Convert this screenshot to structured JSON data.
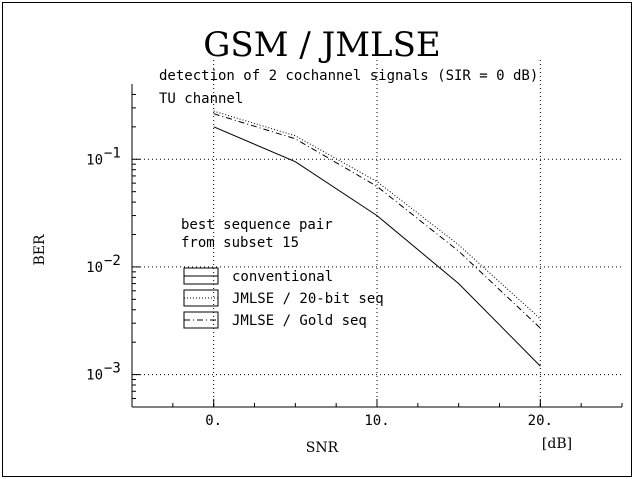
{
  "chart_data": {
    "type": "line",
    "title": "GSM / JMLSE",
    "subtitle_lines": [
      "detection of 2 cochannel signals (SIR = 0 dB)",
      "TU channel"
    ],
    "xlabel": "SNR",
    "xunit": "[dB]",
    "ylabel": "BER",
    "xlim": [
      -5,
      25
    ],
    "ylim": [
      0.0005,
      0.5
    ],
    "yscale": "log",
    "grid": true,
    "x_ticks": [
      0,
      10,
      20
    ],
    "x_tick_labels": [
      "0.",
      "10.",
      "20."
    ],
    "y_ticks": [
      0.1,
      0.01,
      0.001
    ],
    "y_tick_labels": [
      {
        "base": "10",
        "exp": "−1"
      },
      {
        "base": "10",
        "exp": "−2"
      },
      {
        "base": "10",
        "exp": "−3"
      }
    ],
    "annotation": [
      "best sequence pair",
      "from subset 15"
    ],
    "legend_position": "left",
    "series": [
      {
        "name": "conventional",
        "dash": "solid",
        "x": [
          0,
          5,
          10,
          15,
          20
        ],
        "y": [
          0.2,
          0.095,
          0.03,
          0.007,
          0.0012
        ]
      },
      {
        "name": "JMLSE / 20-bit seq",
        "dash": "dotted",
        "x": [
          0,
          5,
          10,
          15,
          20
        ],
        "y": [
          0.28,
          0.165,
          0.062,
          0.016,
          0.0033
        ]
      },
      {
        "name": "JMLSE / Gold seq",
        "dash": "dashdot",
        "x": [
          0,
          5,
          10,
          15,
          20
        ],
        "y": [
          0.265,
          0.155,
          0.056,
          0.014,
          0.0027
        ]
      }
    ]
  }
}
